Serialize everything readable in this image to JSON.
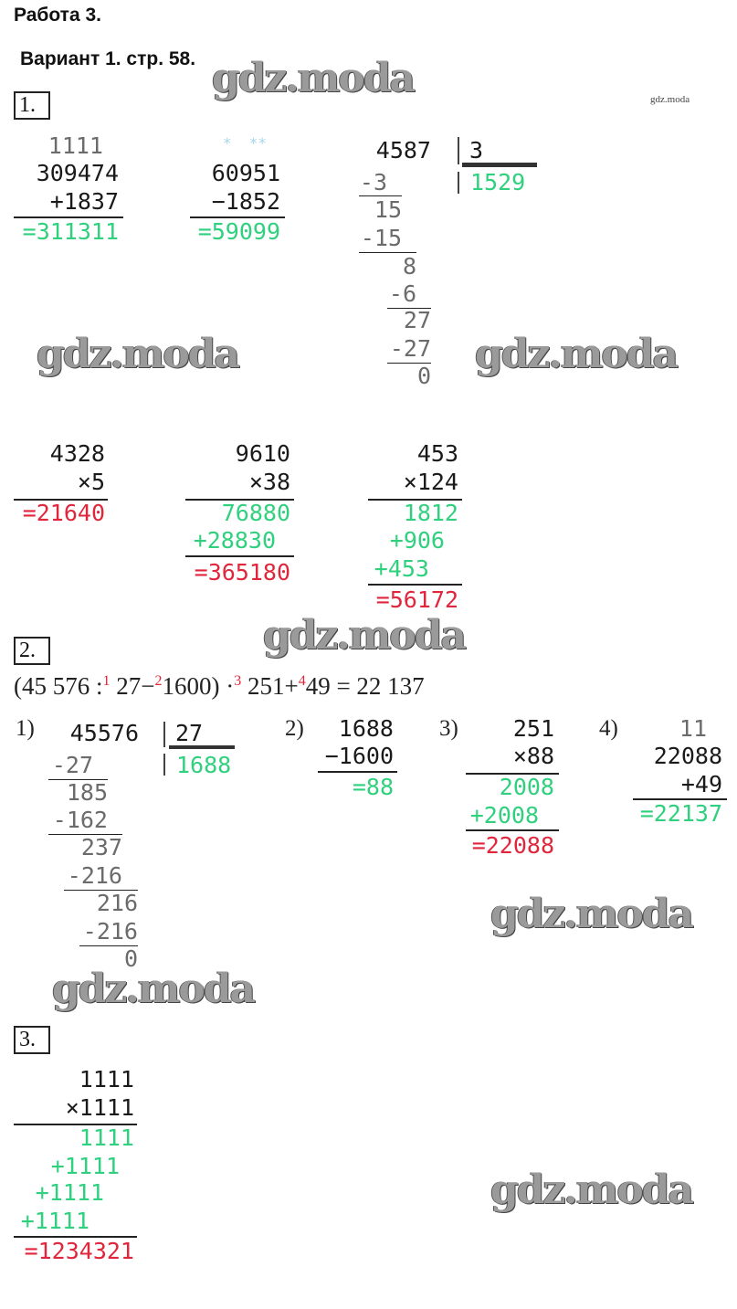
{
  "header": {
    "title": "Работа 3.",
    "variant": "Вариант 1. стр. 58."
  },
  "watermark": {
    "text": "gdz.moda"
  },
  "task1": {
    "number": "1.",
    "addition": {
      "carry": "1111",
      "a": "309474",
      "b": "+1837",
      "result": "=311311"
    },
    "subtraction": {
      "marks": "*  **",
      "a": "60951",
      "b": "−1852",
      "result": "=59099"
    },
    "division": {
      "dividend": "4587",
      "divisor": "3",
      "quotient": "1529",
      "steps": [
        "-3",
        "15",
        "-15",
        "8",
        "-6",
        "27",
        "-27",
        "0"
      ]
    },
    "mult1": {
      "a": "4328",
      "b": "×5",
      "result": "=21640"
    },
    "mult2": {
      "a": "9610",
      "b": "×38",
      "partials": [
        "76880",
        "+28830"
      ],
      "result": "=365180"
    },
    "mult3": {
      "a": "453",
      "b": "×124",
      "partials": [
        "1812",
        "+906",
        "+453"
      ],
      "result": "=56172"
    }
  },
  "task2": {
    "number": "2.",
    "expression": {
      "p1": "(45 576 :",
      "s1": "1",
      "p2": " 27−",
      "s2": "2",
      "p3": "1600) ·",
      "s3": "3",
      "p4": " 251+",
      "s4": "4",
      "p5": "49 = 22 137"
    },
    "step_labels": [
      "1)",
      "2)",
      "3)",
      "4)"
    ],
    "division": {
      "dividend": "45576",
      "divisor": "27",
      "quotient": "1688",
      "steps": [
        "-27",
        "185",
        "-162",
        "237",
        "-216",
        "216",
        "-216",
        "0"
      ]
    },
    "subtraction": {
      "a": "1688",
      "b": "−1600",
      "result": "=88"
    },
    "multiplication": {
      "a": "251",
      "b": "×88",
      "partials": [
        "2008",
        "+2008"
      ],
      "result": "=22088"
    },
    "addition": {
      "carry": "11",
      "a": "22088",
      "b": "+49",
      "result": "=22137"
    }
  },
  "task3": {
    "number": "3.",
    "multiplication": {
      "a": "1111",
      "b": "×1111",
      "partials": [
        "1111",
        "+1111",
        "+1111",
        "+1111"
      ],
      "result": "=1234321"
    }
  },
  "colors": {
    "result_green": "#2fd07e",
    "result_red": "#e0263c",
    "carry_blue": "#a6d6ea"
  }
}
